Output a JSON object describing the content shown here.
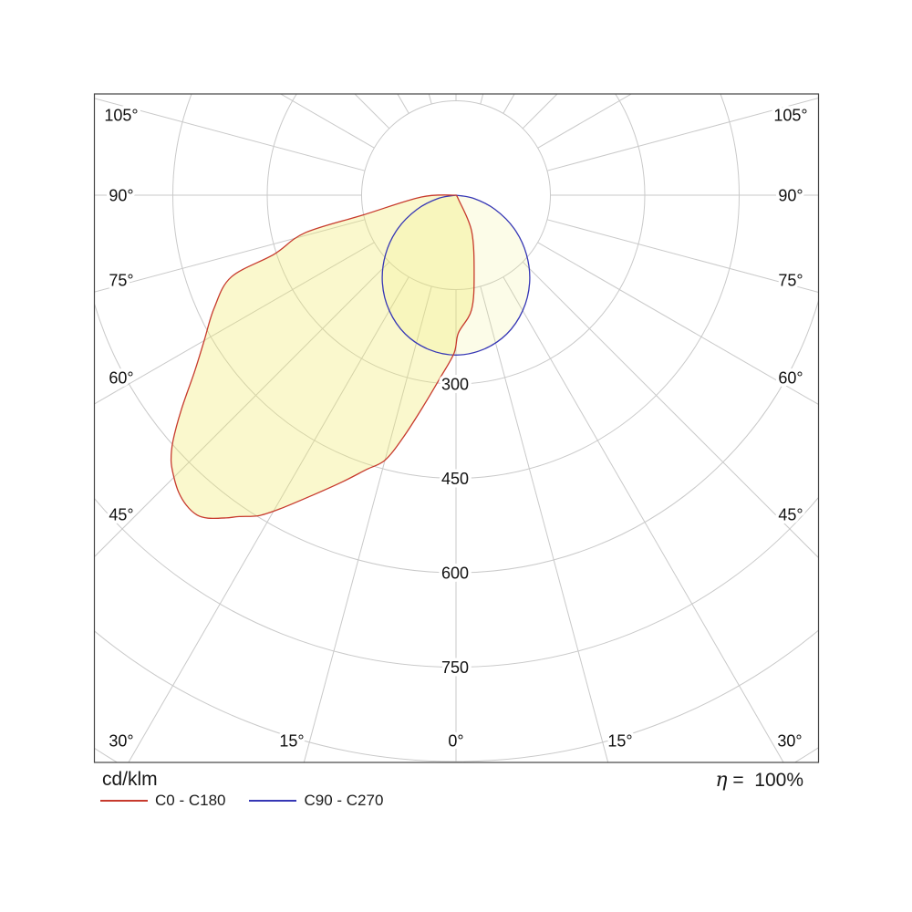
{
  "background": "#ffffff",
  "legend": {
    "title": "cd/klm",
    "entries": [
      {
        "label": "C0 - C180"
      },
      {
        "label": "C90 - C270"
      }
    ]
  },
  "efficiency": {
    "symbol": "η",
    "rest": " =  100%"
  },
  "chart_data": {
    "type": "polar",
    "description": "Photometric polar intensity distribution diagram (light output curves in two C-planes). 0° = nadir (straight down); angles increase to each side up to 105°. Radial axis in cd/klm.",
    "units_label": "cd/klm",
    "efficiency_text": "η =  100%",
    "radial_axis": {
      "ring_step": 150,
      "rings": [
        150,
        300,
        450,
        600,
        750,
        900,
        1050
      ],
      "labeled_rings": [
        300,
        450,
        600,
        750
      ],
      "ring_label_texts": [
        "300",
        "450",
        "600",
        "750"
      ]
    },
    "angle_axis": {
      "spoke_step_deg": 15,
      "left_labels": [
        "105°",
        "90°",
        "75°",
        "60°",
        "45°"
      ],
      "right_labels": [
        "105°",
        "90°",
        "75°",
        "60°",
        "45°"
      ],
      "bottom_labels": [
        "30°",
        "15°",
        "0°",
        "15°",
        "30°"
      ]
    },
    "gamma_convention": "points are [gamma_deg, cd_per_klm]; negative gamma = left half of diagram (C180 / C270 side), positive = right half (C0 / C90 side), 0 = nadir",
    "series": [
      {
        "name": "C0 - C180",
        "color": "#c73a2d",
        "fill": "rgba(238,232,98,0.32)",
        "peak": {
          "gamma_deg": -39,
          "value": 654
        },
        "points": [
          [
            -90,
            0
          ],
          [
            -87,
            55
          ],
          [
            -78,
            150
          ],
          [
            -76,
            247
          ],
          [
            -72,
            304
          ],
          [
            -70,
            380
          ],
          [
            -65,
            424
          ],
          [
            -60,
            462
          ],
          [
            -56,
            501
          ],
          [
            -52,
            554
          ],
          [
            -49,
            596
          ],
          [
            -47,
            619
          ],
          [
            -45,
            634
          ],
          [
            -43,
            646
          ],
          [
            -41,
            653
          ],
          [
            -39,
            654
          ],
          [
            -37.5,
            647
          ],
          [
            -35.5,
            630
          ],
          [
            -34,
            616
          ],
          [
            -31.5,
            597
          ],
          [
            -29,
            568
          ],
          [
            -25.5,
            528
          ],
          [
            -21.5,
            489
          ],
          [
            -18,
            458
          ],
          [
            -15,
            436
          ],
          [
            -12.3,
            394
          ],
          [
            -9,
            342
          ],
          [
            -5,
            292
          ],
          [
            -0.7,
            251
          ],
          [
            1,
            219
          ],
          [
            7.7,
            184
          ],
          [
            13,
            128
          ],
          [
            23.5,
            62
          ],
          [
            30,
            8
          ],
          [
            32,
            0
          ]
        ]
      },
      {
        "name": "C90 - C270",
        "color": "#3637b5",
        "fill": "rgba(240,235,120,0.17)",
        "peak": {
          "gamma_deg": 0,
          "value": 254
        },
        "points": [
          [
            -90,
            0
          ],
          [
            -80,
            28
          ],
          [
            -70,
            66
          ],
          [
            -60,
            107
          ],
          [
            -50,
            146
          ],
          [
            -40,
            182
          ],
          [
            -30,
            212
          ],
          [
            -20,
            235
          ],
          [
            -10,
            249
          ],
          [
            0,
            254
          ],
          [
            10,
            249
          ],
          [
            20,
            235
          ],
          [
            30,
            212
          ],
          [
            40,
            182
          ],
          [
            50,
            146
          ],
          [
            60,
            107
          ],
          [
            70,
            66
          ],
          [
            80,
            28
          ],
          [
            90,
            0
          ]
        ]
      }
    ],
    "grid": {
      "color": "#c9c9c9",
      "border_color": "#444444",
      "text_color": "#111111"
    }
  }
}
